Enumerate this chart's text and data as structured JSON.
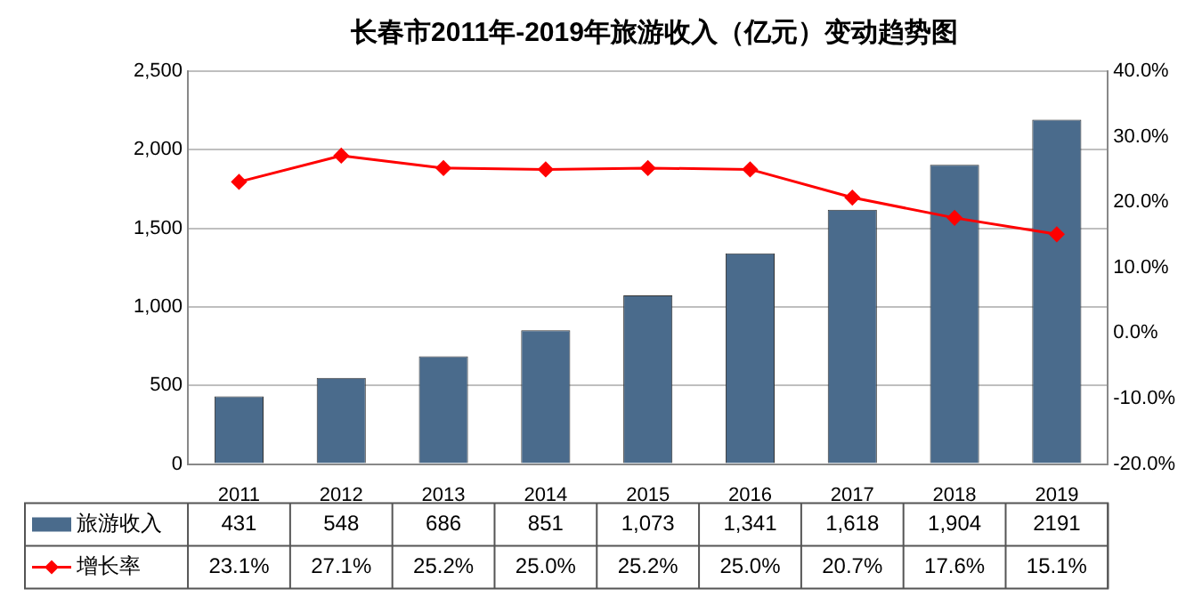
{
  "chart_data": {
    "type": "bar",
    "title": "长春市2011年-2019年旅游收入（亿元）变动趋势图",
    "categories": [
      "2011",
      "2012",
      "2013",
      "2014",
      "2015",
      "2016",
      "2017",
      "2018",
      "2019"
    ],
    "series": [
      {
        "name": "旅游收入",
        "color": "#4a6b8c",
        "values": [
          431,
          548,
          686,
          851,
          1073,
          1341,
          1618,
          1904,
          2191
        ],
        "value_labels": [
          "431",
          "548",
          "686",
          "851",
          "1,073",
          "1,341",
          "1,618",
          "1,904",
          "2191"
        ]
      },
      {
        "name": "增长率",
        "type": "line",
        "axis": "y2",
        "color": "#ff0000",
        "marker": "diamond",
        "values": [
          23.1,
          27.1,
          25.2,
          25.0,
          25.2,
          25.0,
          20.7,
          17.6,
          15.1
        ],
        "value_labels": [
          "23.1%",
          "27.1%",
          "25.2%",
          "25.0%",
          "25.2%",
          "25.0%",
          "20.7%",
          "17.6%",
          "15.1%"
        ]
      }
    ],
    "ylim": [
      0,
      2500
    ],
    "yticks": [
      0,
      500,
      {
        "value": 1000,
        "label": "1,000"
      },
      {
        "value": 1500,
        "label": "1,500"
      },
      {
        "value": 2000,
        "label": "2,000"
      },
      {
        "value": 2500,
        "label": "2,500"
      }
    ],
    "y2lim": [
      -20,
      40
    ],
    "y2ticks": [
      {
        "value": -20,
        "label": "-20.0%"
      },
      {
        "value": -10,
        "label": "-10.0%"
      },
      {
        "value": 0,
        "label": "0.0%"
      },
      {
        "value": 10,
        "label": "10.0%"
      },
      {
        "value": 20,
        "label": "20.0%"
      },
      {
        "value": 30,
        "label": "30.0%"
      },
      {
        "value": 40,
        "label": "40.0%"
      }
    ],
    "grid": "y",
    "legend": "bottom"
  }
}
